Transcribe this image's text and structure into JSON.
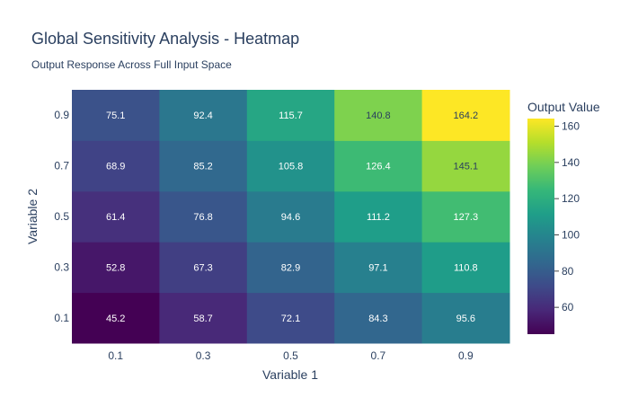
{
  "chart_data": {
    "type": "heatmap",
    "title": "Global Sensitivity Analysis - Heatmap",
    "subtitle": "Output Response Across Full Input Space",
    "xlabel": "Variable 1",
    "ylabel": "Variable 2",
    "x": [
      "0.1",
      "0.3",
      "0.5",
      "0.7",
      "0.9"
    ],
    "y": [
      "0.1",
      "0.3",
      "0.5",
      "0.7",
      "0.9"
    ],
    "z": [
      [
        45.2,
        58.7,
        72.1,
        84.3,
        95.6
      ],
      [
        52.8,
        67.3,
        82.9,
        97.1,
        110.8
      ],
      [
        61.4,
        76.8,
        94.6,
        111.2,
        127.3
      ],
      [
        68.9,
        85.2,
        105.8,
        126.4,
        145.1
      ],
      [
        75.1,
        92.4,
        115.7,
        140.8,
        164.2
      ]
    ],
    "colorscale": "Viridis",
    "zmin": 45.2,
    "zmax": 164.2,
    "colorbar": {
      "title": "Output Value",
      "ticks": [
        60,
        80,
        100,
        120,
        140,
        160
      ]
    },
    "show_cell_values": true
  }
}
